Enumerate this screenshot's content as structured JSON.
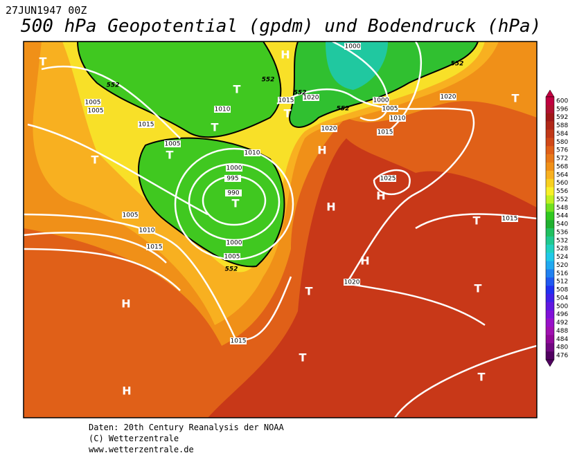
{
  "header": {
    "date": "27JUN1947 00Z",
    "title": "500 hPa Geopotential (gpdm) und Bodendruck (hPa)"
  },
  "map": {
    "centers": [
      "T",
      "T",
      "T",
      "T",
      "T",
      "T",
      "T",
      "H",
      "H",
      "H",
      "H",
      "H",
      "T",
      "T",
      "T",
      "T",
      "H",
      "T",
      "T",
      "H"
    ],
    "isobar_labels": [
      "1005",
      "1005",
      "1015",
      "1005",
      "1010",
      "1010",
      "1000",
      "995",
      "990",
      "1000",
      "1005",
      "1005",
      "1010",
      "1015",
      "1015",
      "1020",
      "1020",
      "1000",
      "1000",
      "1005",
      "1010",
      "1015",
      "1020",
      "1025",
      "1015",
      "1020",
      "1015"
    ],
    "contour_labels": [
      "552",
      "552",
      "552",
      "552",
      "552",
      "552"
    ]
  },
  "legend": {
    "ticks": [
      600,
      596,
      592,
      588,
      584,
      580,
      576,
      572,
      568,
      564,
      560,
      556,
      552,
      548,
      544,
      540,
      536,
      532,
      528,
      524,
      520,
      516,
      512,
      508,
      504,
      500,
      496,
      492,
      488,
      484,
      480,
      476
    ],
    "colors": [
      "#c00040",
      "#b01030",
      "#a01818",
      "#b02818",
      "#c03818",
      "#d04818",
      "#e06018",
      "#e87818",
      "#f09018",
      "#f8b020",
      "#f8d020",
      "#f8f028",
      "#c0f020",
      "#70e020",
      "#30c820",
      "#20b030",
      "#20c060",
      "#20c890",
      "#20d0c0",
      "#20c8e8",
      "#20a8f0",
      "#2080f0",
      "#2058f0",
      "#2030f0",
      "#4020e8",
      "#6018e0",
      "#8010d8",
      "#9810c8",
      "#a010b0",
      "#900898",
      "#700880",
      "#500060"
    ]
  },
  "footer": {
    "lines": [
      "Daten: 20th Century Reanalysis der NOAA",
      "(C) Wetterzentrale",
      "www.wetterzentrale.de"
    ]
  }
}
